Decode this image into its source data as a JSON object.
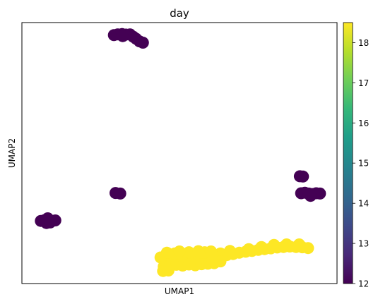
{
  "chart_data": {
    "type": "scatter",
    "title": "day",
    "xlabel": "UMAP1",
    "ylabel": "UMAP2",
    "xlim": [
      0,
      100
    ],
    "ylim": [
      0,
      100
    ],
    "grid": false,
    "xticks": false,
    "yticks": false,
    "point_color": "#440154",
    "colorbar": {
      "label": "",
      "min": 12,
      "max": 18.5,
      "ticks": [
        "12",
        "13",
        "14",
        "15",
        "16",
        "17",
        "18"
      ],
      "colormap": "viridis"
    },
    "points": [
      {
        "x": 29.2,
        "y": 95.2,
        "value": 12
      },
      {
        "x": 30.4,
        "y": 95.5,
        "value": 12
      },
      {
        "x": 31.8,
        "y": 95.6,
        "value": 12
      },
      {
        "x": 33.0,
        "y": 95.4,
        "value": 12
      },
      {
        "x": 34.3,
        "y": 95.5,
        "value": 12
      },
      {
        "x": 35.3,
        "y": 94.6,
        "value": 12
      },
      {
        "x": 36.2,
        "y": 93.8,
        "value": 12
      },
      {
        "x": 37.3,
        "y": 92.8,
        "value": 12
      },
      {
        "x": 38.4,
        "y": 92.3,
        "value": 12
      },
      {
        "x": 32.0,
        "y": 94.8,
        "value": 12
      },
      {
        "x": 29.7,
        "y": 34.7,
        "value": 12
      },
      {
        "x": 31.2,
        "y": 34.5,
        "value": 12
      },
      {
        "x": 6.0,
        "y": 24.0,
        "value": 12
      },
      {
        "x": 7.2,
        "y": 24.3,
        "value": 12
      },
      {
        "x": 8.4,
        "y": 24.1,
        "value": 12
      },
      {
        "x": 9.6,
        "y": 24.0,
        "value": 12
      },
      {
        "x": 10.6,
        "y": 24.2,
        "value": 12
      },
      {
        "x": 7.8,
        "y": 23.2,
        "value": 12
      },
      {
        "x": 9.0,
        "y": 23.4,
        "value": 12
      },
      {
        "x": 8.2,
        "y": 25.0,
        "value": 12
      },
      {
        "x": 88.2,
        "y": 41.1,
        "value": 12
      },
      {
        "x": 89.2,
        "y": 41.0,
        "value": 12
      },
      {
        "x": 88.6,
        "y": 34.6,
        "value": 12
      },
      {
        "x": 89.8,
        "y": 34.8,
        "value": 12
      },
      {
        "x": 91.0,
        "y": 34.5,
        "value": 12
      },
      {
        "x": 92.2,
        "y": 34.3,
        "value": 12
      },
      {
        "x": 93.4,
        "y": 34.6,
        "value": 12
      },
      {
        "x": 94.6,
        "y": 34.5,
        "value": 12
      },
      {
        "x": 91.6,
        "y": 33.6,
        "value": 12
      },
      {
        "x": 44.0,
        "y": 10.0,
        "value": 18.5
      },
      {
        "x": 45.8,
        "y": 9.2,
        "value": 18.5
      },
      {
        "x": 47.5,
        "y": 10.5,
        "value": 18.5
      },
      {
        "x": 49.3,
        "y": 9.8,
        "value": 18.5
      },
      {
        "x": 51.0,
        "y": 10.8,
        "value": 18.5
      },
      {
        "x": 52.8,
        "y": 9.5,
        "value": 18.5
      },
      {
        "x": 54.5,
        "y": 10.6,
        "value": 18.5
      },
      {
        "x": 56.3,
        "y": 9.7,
        "value": 18.5
      },
      {
        "x": 58.0,
        "y": 10.4,
        "value": 18.5
      },
      {
        "x": 59.8,
        "y": 9.8,
        "value": 18.5
      },
      {
        "x": 61.5,
        "y": 10.5,
        "value": 18.5
      },
      {
        "x": 63.3,
        "y": 10.0,
        "value": 18.5
      },
      {
        "x": 65.0,
        "y": 10.9,
        "value": 18.5
      },
      {
        "x": 45.0,
        "y": 6.5,
        "value": 18.5
      },
      {
        "x": 47.0,
        "y": 6.8,
        "value": 18.5
      },
      {
        "x": 49.0,
        "y": 7.2,
        "value": 18.5
      },
      {
        "x": 51.0,
        "y": 6.9,
        "value": 18.5
      },
      {
        "x": 53.0,
        "y": 7.3,
        "value": 18.5
      },
      {
        "x": 55.0,
        "y": 7.0,
        "value": 18.5
      },
      {
        "x": 57.0,
        "y": 7.4,
        "value": 18.5
      },
      {
        "x": 59.0,
        "y": 7.6,
        "value": 18.5
      },
      {
        "x": 61.0,
        "y": 7.8,
        "value": 18.5
      },
      {
        "x": 44.8,
        "y": 4.8,
        "value": 18.5
      },
      {
        "x": 46.5,
        "y": 5.0,
        "value": 18.5
      },
      {
        "x": 48.5,
        "y": 11.5,
        "value": 18.5
      },
      {
        "x": 53.0,
        "y": 12.0,
        "value": 18.5
      },
      {
        "x": 58.0,
        "y": 12.0,
        "value": 18.5
      },
      {
        "x": 63.0,
        "y": 11.5,
        "value": 18.5
      },
      {
        "x": 67.0,
        "y": 11.3,
        "value": 18.5
      },
      {
        "x": 69.0,
        "y": 11.8,
        "value": 18.5
      },
      {
        "x": 71.0,
        "y": 12.2,
        "value": 18.5
      },
      {
        "x": 73.0,
        "y": 12.5,
        "value": 18.5
      },
      {
        "x": 75.0,
        "y": 12.9,
        "value": 18.5
      },
      {
        "x": 77.0,
        "y": 13.2,
        "value": 18.5
      },
      {
        "x": 79.0,
        "y": 13.5,
        "value": 18.5
      },
      {
        "x": 81.0,
        "y": 13.8,
        "value": 18.5
      },
      {
        "x": 83.0,
        "y": 14.0,
        "value": 18.5
      },
      {
        "x": 85.0,
        "y": 14.2,
        "value": 18.5
      },
      {
        "x": 87.0,
        "y": 14.0,
        "value": 18.5
      },
      {
        "x": 89.0,
        "y": 13.9,
        "value": 18.5
      },
      {
        "x": 90.8,
        "y": 13.6,
        "value": 18.5
      },
      {
        "x": 80.0,
        "y": 14.8,
        "value": 18.5
      },
      {
        "x": 84.0,
        "y": 15.0,
        "value": 18.5
      },
      {
        "x": 88.0,
        "y": 15.0,
        "value": 18.5
      },
      {
        "x": 76.0,
        "y": 14.0,
        "value": 18.5
      },
      {
        "x": 72.0,
        "y": 13.2,
        "value": 18.5
      },
      {
        "x": 66.0,
        "y": 12.5,
        "value": 18.5
      },
      {
        "x": 60.0,
        "y": 12.3,
        "value": 18.5
      },
      {
        "x": 56.0,
        "y": 12.4,
        "value": 18.5
      },
      {
        "x": 50.0,
        "y": 12.3,
        "value": 18.5
      },
      {
        "x": 46.0,
        "y": 11.8,
        "value": 18.5
      },
      {
        "x": 63.0,
        "y": 8.5,
        "value": 18.5
      },
      {
        "x": 60.5,
        "y": 8.8,
        "value": 18.5
      }
    ]
  }
}
